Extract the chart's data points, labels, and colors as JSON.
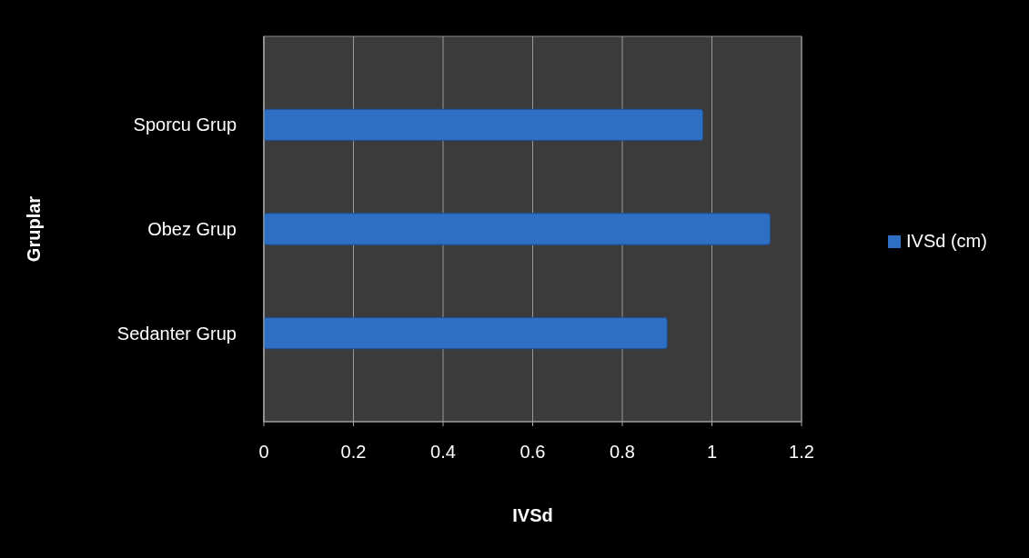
{
  "chart_data": {
    "type": "bar",
    "orientation": "horizontal",
    "xlabel": "IVSd",
    "ylabel": "Gruplar",
    "categories": [
      "Sporcu Grup",
      "Obez Grup",
      "Sedanter Grup"
    ],
    "series": [
      {
        "name": "IVSd (cm)",
        "color": "#2e6fc4",
        "values": [
          0.98,
          1.13,
          0.9
        ]
      }
    ],
    "xlim": [
      0,
      1.2
    ],
    "xticks": [
      0,
      0.2,
      0.4,
      0.6,
      0.8,
      1,
      1.2
    ],
    "grid": "x",
    "legend": "right"
  }
}
